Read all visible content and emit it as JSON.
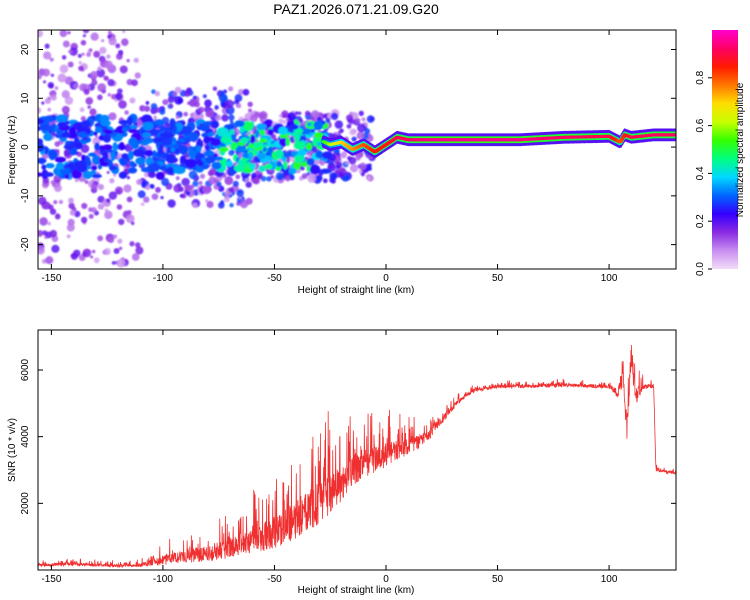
{
  "title": "PAZ1.2026.071.21.09.G20",
  "chart_data": [
    {
      "type": "heatmap",
      "name": "spectrogram",
      "xlabel": "Height of straight line (km)",
      "ylabel": "Frequency (Hz)",
      "xlim": [
        -156,
        130
      ],
      "ylim": [
        -25,
        24
      ],
      "xticks": [
        -150,
        -100,
        -50,
        0,
        50,
        100
      ],
      "yticks": [
        -20,
        -10,
        0,
        10,
        20
      ],
      "colorbar": {
        "label": "Normalized spectral amplitude",
        "range": [
          0,
          1
        ],
        "ticks": [
          0.0,
          0.2,
          0.4,
          0.6,
          0.8
        ],
        "tick_labels": [
          "0.0",
          "0.2",
          "0.4",
          "0.6",
          "0.8"
        ],
        "stops": [
          "#f2dcf7",
          "#c88ef0",
          "#8a2be2",
          "#3300ff",
          "#0066ff",
          "#00d9ff",
          "#00ff80",
          "#33ff00",
          "#c8ff00",
          "#ffdd00",
          "#ff7700",
          "#ff1a00",
          "#ff0066",
          "#ff00cc"
        ]
      },
      "ridge": {
        "description": "dominant frequency line",
        "x": [
          -30,
          -25,
          -20,
          -15,
          -10,
          -5,
          0,
          5,
          10,
          20,
          40,
          60,
          80,
          100,
          105,
          107,
          110,
          120,
          130
        ],
        "y": [
          1.5,
          0.5,
          1.0,
          -0.5,
          0.5,
          -1.0,
          0.5,
          2.0,
          1.5,
          1.5,
          1.5,
          1.5,
          2.0,
          2.2,
          1.0,
          2.5,
          2.0,
          2.5,
          2.5
        ],
        "amplitude": [
          0.45,
          0.6,
          0.7,
          0.75,
          0.8,
          0.85,
          0.85,
          0.9,
          0.92,
          0.95,
          0.95,
          0.95,
          0.92,
          0.9,
          0.8,
          0.85,
          0.9,
          0.92,
          0.92
        ]
      }
    },
    {
      "type": "line",
      "name": "snr",
      "xlabel": "Height of straight line (km)",
      "ylabel": "SNR (10 * v/v)",
      "xlim": [
        -156,
        130
      ],
      "ylim": [
        0,
        7200
      ],
      "xticks": [
        -150,
        -100,
        -50,
        0,
        50,
        100
      ],
      "yticks": [
        2000,
        4000,
        6000
      ],
      "color": "#f03030",
      "series": [
        {
          "name": "SNR",
          "x": [
            -156,
            -140,
            -120,
            -110,
            -100,
            -90,
            -80,
            -70,
            -60,
            -50,
            -40,
            -30,
            -25,
            -20,
            -15,
            -10,
            -5,
            0,
            5,
            10,
            15,
            20,
            25,
            30,
            35,
            40,
            50,
            60,
            80,
            100,
            104,
            106,
            108,
            110,
            112,
            115,
            120,
            121,
            125,
            130
          ],
          "y": [
            150,
            180,
            120,
            150,
            300,
            400,
            500,
            650,
            900,
            1100,
            1500,
            2000,
            2300,
            2600,
            3000,
            3200,
            3300,
            3450,
            3600,
            3700,
            3850,
            4100,
            4500,
            4900,
            5200,
            5400,
            5500,
            5500,
            5550,
            5500,
            5300,
            5800,
            4200,
            6500,
            5200,
            5500,
            5500,
            3000,
            2950,
            2900
          ],
          "noise": [
            80,
            100,
            80,
            100,
            300,
            400,
            500,
            600,
            800,
            900,
            1100,
            1300,
            1200,
            1100,
            1000,
            900,
            800,
            700,
            600,
            500,
            400,
            300,
            250,
            200,
            150,
            120,
            100,
            100,
            100,
            100,
            300,
            600,
            800,
            800,
            500,
            200,
            100,
            80,
            80,
            80
          ]
        }
      ]
    }
  ]
}
